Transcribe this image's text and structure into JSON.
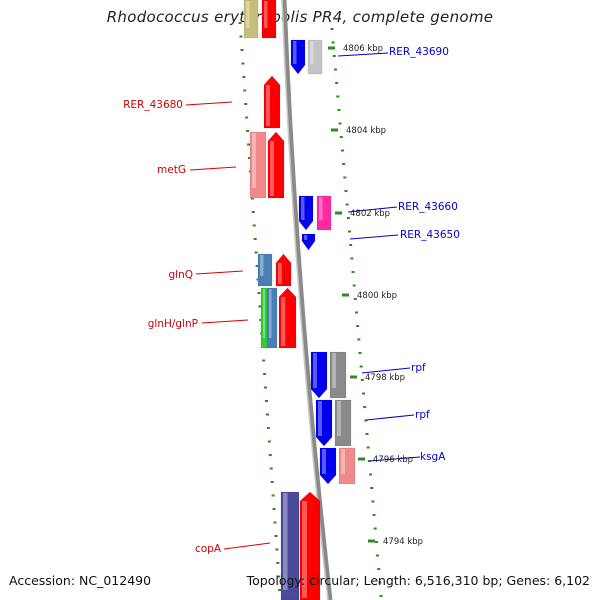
{
  "title": "Rhodococcus erythropolis PR4, complete genome",
  "accession": "Accession: NC_012490",
  "summary": "Topology: circular; Length: 6,516,310 bp; Genes: 6,102",
  "ticks": [
    "4806 kbp",
    "4804 kbp",
    "4802 kbp",
    "4800 kbp",
    "4798 kbp",
    "4796 kbp",
    "4794 kbp"
  ],
  "genes_left": [
    {
      "name": "RER_43680",
      "color": "#cc0000"
    },
    {
      "name": "metG",
      "color": "#cc0000"
    },
    {
      "name": "glnQ",
      "color": "#cc0000"
    },
    {
      "name": "glnH/glnP",
      "color": "#cc0000"
    },
    {
      "name": "copA",
      "color": "#cc0000"
    }
  ],
  "genes_right": [
    {
      "name": "RER_43690",
      "color": "#0000cc"
    },
    {
      "name": "RER_43660",
      "color": "#0000cc"
    },
    {
      "name": "RER_43650",
      "color": "#0000cc"
    },
    {
      "name": "rpf",
      "color": "#0000cc"
    },
    {
      "name": "rpf",
      "color": "#0000cc"
    },
    {
      "name": "ksgA",
      "color": "#0000cc"
    }
  ],
  "colors": {
    "backbone": "#8a8a8a",
    "tick_marks": "#2e8b1e",
    "forward_cds": "#ff0000",
    "reverse_cds": "#0000ee",
    "cog_pink": "#f08a8a",
    "cog_gray": "#8a8a8a",
    "cog_steelblue": "#4a7fb5",
    "cog_green": "#33cc33",
    "cog_magenta": "#ff2aa0",
    "cog_slate": "#4a4a9a",
    "cog_olive": "#c8bc7a"
  }
}
